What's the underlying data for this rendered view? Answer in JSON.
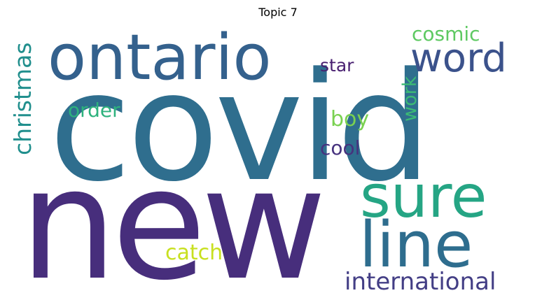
{
  "title": "Topic 7",
  "word_cloud": {
    "words": [
      {
        "text": "covid",
        "color": "#2f6e8e"
      },
      {
        "text": "new",
        "color": "#472e7c"
      },
      {
        "text": "ontario",
        "color": "#34618d"
      },
      {
        "text": "sure",
        "color": "#25a584"
      },
      {
        "text": "line",
        "color": "#2e6d8e"
      },
      {
        "text": "word",
        "color": "#3b528b"
      },
      {
        "text": "international",
        "color": "#433e85"
      },
      {
        "text": "christmas",
        "color": "#218f8d"
      },
      {
        "text": "cosmic",
        "color": "#5ec962"
      },
      {
        "text": "catch",
        "color": "#c8e020"
      },
      {
        "text": "order",
        "color": "#2db27d"
      },
      {
        "text": "boy",
        "color": "#7ad151"
      },
      {
        "text": "work",
        "color": "#3bbb75"
      },
      {
        "text": "cool",
        "color": "#46327e"
      },
      {
        "text": "star",
        "color": "#481f70"
      }
    ]
  }
}
